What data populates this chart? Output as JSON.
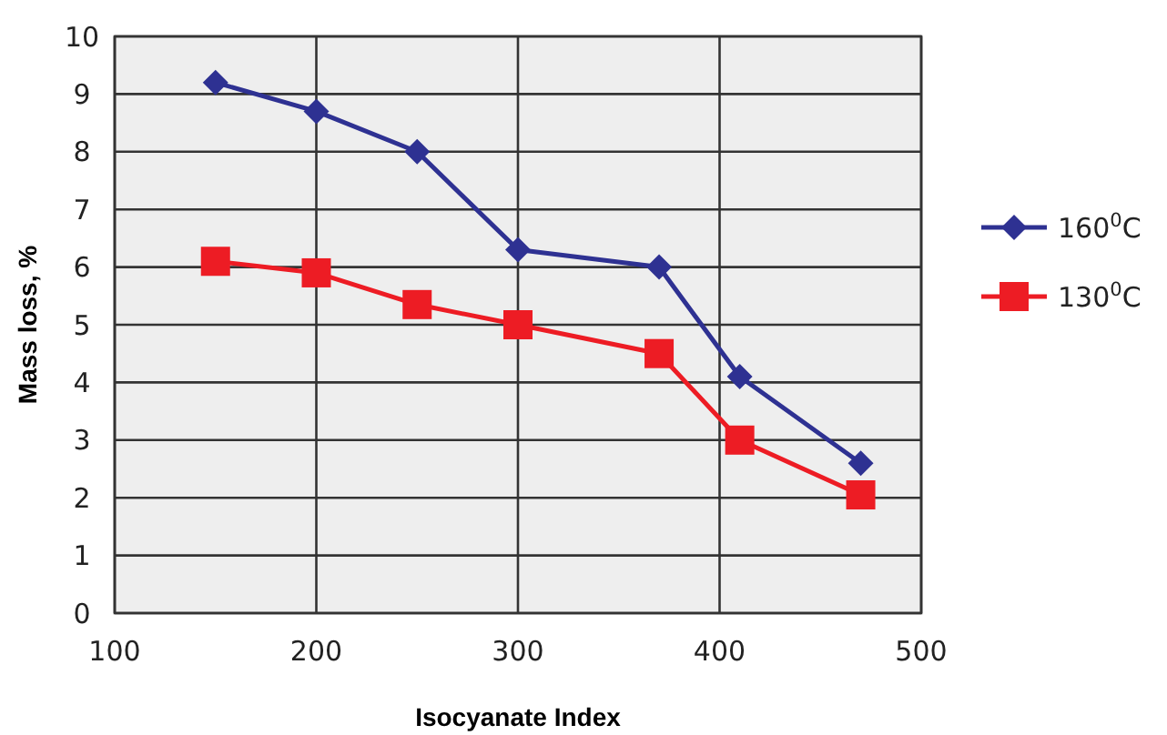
{
  "chart_data": {
    "type": "line",
    "xlabel": "Isocyanate Index",
    "ylabel": "Mass loss, %",
    "x": [
      150,
      200,
      250,
      300,
      370,
      410,
      470
    ],
    "series": [
      {
        "name": "160$^{0}$C",
        "color": "#2e3192",
        "marker": "diamond",
        "values": [
          9.2,
          8.7,
          8.0,
          6.3,
          6.0,
          4.1,
          2.6
        ]
      },
      {
        "name": "130$^{0}$C",
        "color": "#ed1c24",
        "marker": "square",
        "values": [
          6.1,
          5.9,
          5.35,
          5.0,
          4.5,
          3.0,
          2.05
        ]
      }
    ],
    "xlim": [
      100,
      500
    ],
    "xticks": [
      100,
      200,
      300,
      400,
      500
    ],
    "ylim": [
      0,
      10
    ],
    "yticks": [
      0,
      1,
      2,
      3,
      4,
      5,
      6,
      7,
      8,
      9,
      10
    ],
    "grid": true,
    "legend": "right"
  }
}
